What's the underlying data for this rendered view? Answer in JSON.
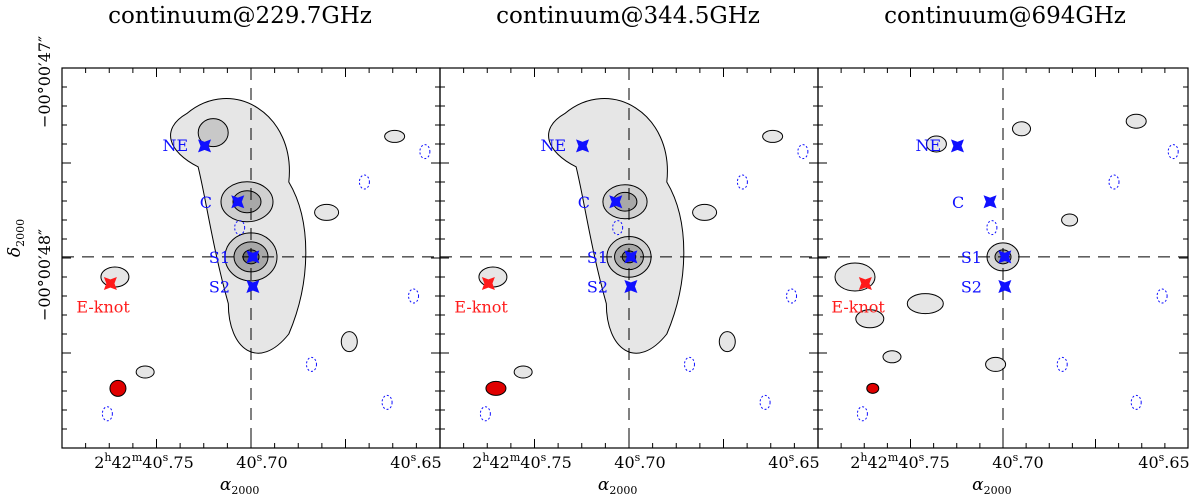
{
  "figure": {
    "panels": [
      {
        "title": "continuum@229.7GHz",
        "beam": "circle",
        "variant": "a"
      },
      {
        "title": "continuum@344.5GHz",
        "beam": "ellipse",
        "variant": "b"
      },
      {
        "title": "continuum@694GHz",
        "beam": "small",
        "variant": "c"
      }
    ],
    "ra": {
      "label_main": "α",
      "label_sub": "2000",
      "tick_left": {
        "hh": "2",
        "hu": "h",
        "mm": "42",
        "mu": "m",
        "ss": "40",
        "su": "s",
        "frac": ".75"
      },
      "tick_mid": {
        "ss": "40",
        "su": "s",
        "frac": ".70"
      },
      "tick_right": {
        "ss": "40",
        "su": "s",
        "frac": ".65"
      }
    },
    "dec": {
      "label_main": "δ",
      "label_sub": "2000",
      "tick_top": "−00°00′47″",
      "tick_bottom": "−00°00′48″"
    },
    "sources": [
      {
        "id": "NE",
        "label": "NE",
        "color": "#1010ff"
      },
      {
        "id": "C",
        "label": "C",
        "color": "#1010ff"
      },
      {
        "id": "S1",
        "label": "S1",
        "color": "#1010ff"
      },
      {
        "id": "S2",
        "label": "S2",
        "color": "#1010ff"
      },
      {
        "id": "E-knot",
        "label": "E-knot",
        "color": "#ff1a1a"
      }
    ],
    "colors": {
      "contour_fill": "#e6e6e6",
      "contour_line": "#000000",
      "negative_contour": "#1010ff",
      "beam_fill": "#e00000"
    }
  }
}
